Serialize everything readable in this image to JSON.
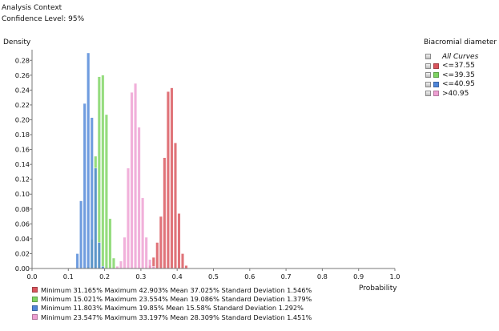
{
  "context": {
    "title": "Analysis Context",
    "confidence": "Confidence Level: 95%"
  },
  "chart_data": {
    "type": "bar",
    "subtype": "histogram",
    "xlabel": "Probability",
    "ylabel": "Density",
    "xlim": [
      0.0,
      1.0
    ],
    "ylim": [
      0.0,
      0.29
    ],
    "xticks": [
      "0.0",
      "0.1",
      "0.2",
      "0.3",
      "0.4",
      "0.5",
      "0.6",
      "0.7",
      "0.8",
      "0.9",
      "1.0"
    ],
    "yticks": [
      "0.00",
      "0.02",
      "0.04",
      "0.06",
      "0.08",
      "0.10",
      "0.12",
      "0.14",
      "0.16",
      "0.18",
      "0.20",
      "0.22",
      "0.24",
      "0.26",
      "0.28"
    ],
    "bin_width": 0.01,
    "legend_title": "Biacromial diameter",
    "legend_all": "All Curves",
    "legend_position": "right",
    "series": [
      {
        "name": "<=37.55",
        "color": "#d9545c",
        "bins": [
          0.31,
          0.32,
          0.33,
          0.34,
          0.35,
          0.36,
          0.37,
          0.38,
          0.39,
          0.4,
          0.41,
          0.42
        ],
        "values": [
          0.001,
          0.004,
          0.015,
          0.035,
          0.07,
          0.149,
          0.238,
          0.243,
          0.169,
          0.074,
          0.02,
          0.004
        ],
        "stats": "Minimum 31.165% Maximum 42.903% Mean 37.025% Standard Deviation 1.546%"
      },
      {
        "name": "<=39.35",
        "color": "#7ed462",
        "bins": [
          0.15,
          0.16,
          0.17,
          0.18,
          0.19,
          0.2,
          0.21,
          0.22
        ],
        "values": [
          0.002,
          0.039,
          0.151,
          0.258,
          0.26,
          0.207,
          0.067,
          0.014
        ],
        "stats": "Minimum 15.021% Maximum 23.554% Mean 19.086% Standard Deviation 1.379%"
      },
      {
        "name": "<=40.95",
        "color": "#4f86d8",
        "bins": [
          0.12,
          0.13,
          0.14,
          0.15,
          0.16,
          0.17,
          0.18,
          0.19
        ],
        "values": [
          0.02,
          0.091,
          0.222,
          0.29,
          0.203,
          0.135,
          0.035,
          0.003
        ],
        "stats": "Minimum 11.803% Maximum 19.85% Mean 15.58% Standard Deviation 1.292%"
      },
      {
        "name": ">40.95",
        "color": "#ee9fd2",
        "bins": [
          0.23,
          0.24,
          0.25,
          0.26,
          0.27,
          0.28,
          0.29,
          0.3,
          0.31,
          0.32,
          0.33
        ],
        "values": [
          0.003,
          0.01,
          0.042,
          0.135,
          0.237,
          0.249,
          0.19,
          0.095,
          0.042,
          0.012,
          0.003
        ],
        "stats": "Minimum 23.547% Maximum 33.197% Mean 28.309% Standard Deviation 1.451%"
      }
    ]
  }
}
